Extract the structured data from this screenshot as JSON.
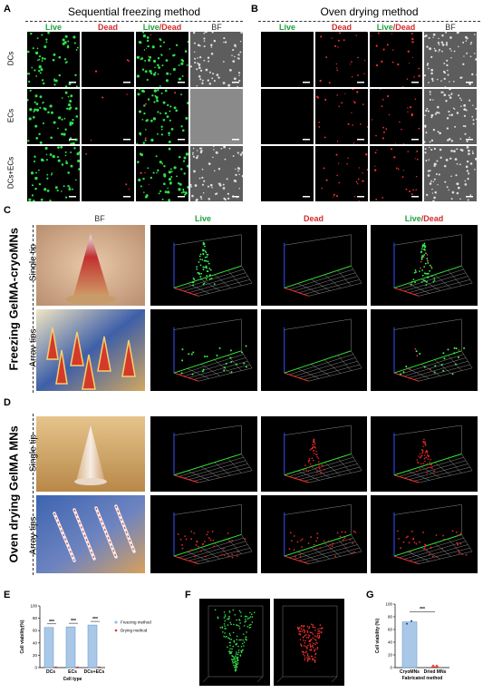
{
  "panels": {
    "A": {
      "letter": "A",
      "title": "Sequential freezing method",
      "cols": [
        {
          "a": "Live",
          "b": "",
          "c": ""
        },
        {
          "a": "",
          "b": "Dead",
          "c": ""
        },
        {
          "a": "Live",
          "b": "/",
          "c": "Dead"
        },
        {
          "a": "",
          "b": "",
          "c": "BF",
          "bf": true
        }
      ],
      "rows": [
        "DCs",
        "ECs",
        "DCs+ECs"
      ]
    },
    "B": {
      "letter": "B",
      "title": "Oven drying method",
      "cols": [
        {
          "a": "Live",
          "b": "",
          "c": ""
        },
        {
          "a": "",
          "b": "Dead",
          "c": ""
        },
        {
          "a": "Live",
          "b": "/",
          "c": "Dead"
        },
        {
          "a": "",
          "b": "",
          "c": "BF",
          "bf": true
        }
      ]
    },
    "C": {
      "letter": "C",
      "big": "Freezing GelMA-cryoMNs",
      "rows": [
        "Single tip",
        "Array tips"
      ],
      "cols": {
        "bf": "BF",
        "live": "Live",
        "dead": "Dead",
        "ld_a": "Live",
        "ld_b": "/",
        "ld_c": "Dead"
      }
    },
    "D": {
      "letter": "D",
      "big": "Oven drying GelMA MNs",
      "rows": [
        "Single tip",
        "Array tips"
      ]
    },
    "E": {
      "letter": "E"
    },
    "F": {
      "letter": "F"
    },
    "G": {
      "letter": "G"
    }
  },
  "chart_data": [
    {
      "type": "bar",
      "panel": "E",
      "categories": [
        "DCs",
        "ECs",
        "DCs+ECs"
      ],
      "series": [
        {
          "name": "Freezing method",
          "values": [
            65,
            66,
            69
          ]
        },
        {
          "name": "Drying method",
          "values": [
            0.5,
            0.5,
            0.5
          ]
        }
      ],
      "xlabel": "Cell type",
      "ylabel": "Cell viability(%)",
      "ylim": [
        0,
        100
      ],
      "yticks": [
        0,
        20,
        40,
        60,
        80,
        100
      ],
      "annotations": [
        "***",
        "***",
        "***"
      ],
      "legend": "right"
    },
    {
      "type": "bar",
      "panel": "G",
      "categories": [
        "CryoMNs",
        "Dried MNs"
      ],
      "values": [
        72,
        0.5
      ],
      "xlabel": "Fabricated method",
      "ylabel": "Cell viability (%)",
      "ylim": [
        0,
        100
      ],
      "yticks": [
        0,
        20,
        40,
        60,
        80,
        100
      ],
      "annotations": [
        "***"
      ]
    }
  ]
}
